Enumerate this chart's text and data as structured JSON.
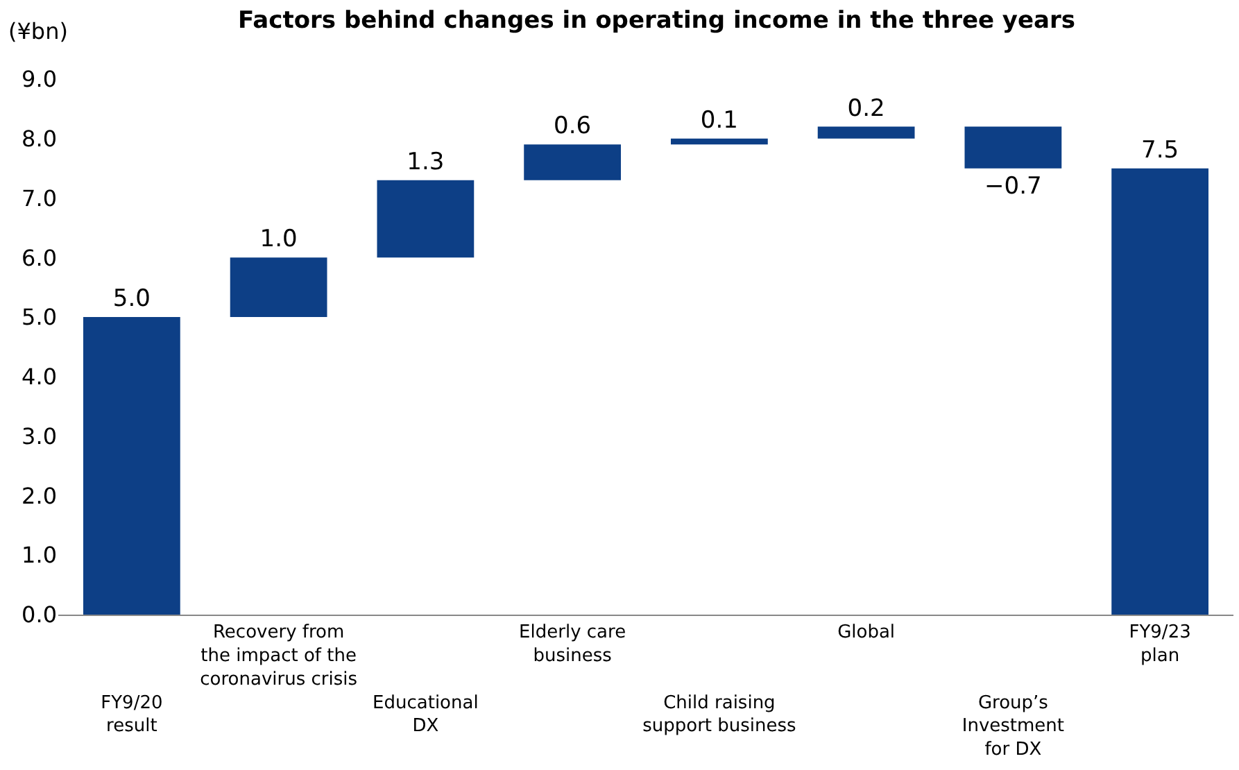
{
  "chart_data": {
    "type": "bar",
    "title": "Factors behind changes in operating income in the three years",
    "ylabel": "(¥bn)",
    "categories": [
      "FY9/20\nresult",
      "Recovery from\nthe impact of the\ncoronavirus crisis",
      "Educational\nDX",
      "Elderly care\nbusiness",
      "Child raising\nsupport business",
      "Global",
      "Group’s\nInvestment\nfor DX",
      "FY9/23\nplan"
    ],
    "values": [
      5.0,
      1.0,
      1.3,
      0.6,
      0.1,
      0.2,
      -0.7,
      7.5
    ],
    "base": [
      0,
      5.0,
      6.0,
      7.3,
      7.9,
      8.0,
      8.2,
      0
    ],
    "value_labels": [
      "5.0",
      "1.0",
      "1.3",
      "0.6",
      "0.1",
      "0.2",
      "−0.7",
      "7.5"
    ],
    "color": "#0d3f86",
    "ylim": [
      0,
      9
    ],
    "yticks": [
      {
        "value": 0,
        "label": "0.0"
      },
      {
        "value": 1,
        "label": "1.0"
      },
      {
        "value": 2,
        "label": "2.0"
      },
      {
        "value": 3,
        "label": "3.0"
      },
      {
        "value": 4,
        "label": "4.0"
      },
      {
        "value": 5,
        "label": "5.0"
      },
      {
        "value": 6,
        "label": "6.0"
      },
      {
        "value": 7,
        "label": "7.0"
      },
      {
        "value": 8,
        "label": "8.0"
      },
      {
        "value": 9,
        "label": "9.0"
      }
    ],
    "legend": false
  }
}
